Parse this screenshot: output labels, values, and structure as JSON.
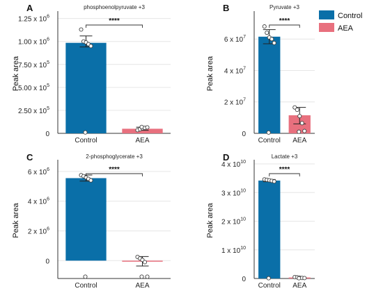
{
  "colors": {
    "control": "#0a6fa8",
    "aea": "#e8707e"
  },
  "legend": [
    {
      "label": "Control",
      "color": "#0a6fa8"
    },
    {
      "label": "AEA",
      "color": "#e8707e"
    }
  ],
  "chart_data": [
    {
      "panel": "A",
      "type": "bar",
      "title": "phosphoenolpyruvate +3",
      "ylabel": "Peak area",
      "categories": [
        "Control",
        "AEA"
      ],
      "values": [
        985000,
        50000
      ],
      "error": [
        [
          940000,
          1060000
        ],
        [
          33000,
          67000
        ]
      ],
      "points": [
        [
          1130000,
          1000000,
          990000,
          970000,
          950000,
          10000
        ],
        [
          35000,
          45000,
          55000,
          60000,
          65000,
          70000
        ]
      ],
      "ylim": [
        0,
        1300000
      ],
      "yticks": [
        {
          "value": 0,
          "base": "0",
          "exp": ""
        },
        {
          "value": 250000,
          "base": "2.50 x 10",
          "exp": "5"
        },
        {
          "value": 500000,
          "base": "5.00 x 10",
          "exp": "5"
        },
        {
          "value": 750000,
          "base": "7.50 x 10",
          "exp": "5"
        },
        {
          "value": 1000000,
          "base": "1.00 x 10",
          "exp": "6"
        },
        {
          "value": 1250000,
          "base": "1.25 x 10",
          "exp": "6"
        }
      ],
      "significance": "****"
    },
    {
      "panel": "B",
      "type": "bar",
      "title": "Pyruvate +3",
      "ylabel": "Peak area",
      "categories": [
        "Control",
        "AEA"
      ],
      "values": [
        61500000,
        11500000
      ],
      "error": [
        [
          57000000,
          66000000
        ],
        [
          6000000,
          16500000
        ]
      ],
      "points": [
        [
          68000000,
          64000000,
          61000000,
          60000000,
          57500000,
          500000
        ],
        [
          16500000,
          15000000,
          11000000,
          6500000,
          1500000,
          1000000
        ]
      ],
      "ylim": [
        0,
        76000000
      ],
      "yticks": [
        {
          "value": 0,
          "base": "0",
          "exp": ""
        },
        {
          "value": 20000000,
          "base": "2 x 10",
          "exp": "7"
        },
        {
          "value": 40000000,
          "base": "4 x 10",
          "exp": "7"
        },
        {
          "value": 60000000,
          "base": "6 x 10",
          "exp": "7"
        }
      ],
      "significance": "****"
    },
    {
      "panel": "C",
      "type": "bar",
      "title": "2-phosphoglycerate +3",
      "ylabel": "Peak area",
      "categories": [
        "Control",
        "AEA"
      ],
      "values": [
        5550000,
        -40000
      ],
      "error": [
        [
          5350000,
          5760000
        ],
        [
          -360000,
          280000
        ]
      ],
      "points": [
        [
          5750000,
          5680000,
          5600000,
          5500000,
          5400000,
          -1080000
        ],
        [
          250000,
          150000,
          50000,
          -100000,
          -1080000,
          -1080000
        ]
      ],
      "ylim": [
        -1200000,
        6600000
      ],
      "yticks": [
        {
          "value": 0,
          "base": "0",
          "exp": ""
        },
        {
          "value": 2000000,
          "base": "2 x 10",
          "exp": "6"
        },
        {
          "value": 4000000,
          "base": "4 x 10",
          "exp": "6"
        },
        {
          "value": 6000000,
          "base": "6 x 10",
          "exp": "6"
        }
      ],
      "significance": "****"
    },
    {
      "panel": "D",
      "type": "bar",
      "title": "Lactate +3",
      "ylabel": "Peak area",
      "categories": [
        "Control",
        "AEA"
      ],
      "values": [
        34200000000,
        350000000
      ],
      "error": [
        [
          33800000000,
          34600000000
        ],
        [
          200000000,
          500000000
        ]
      ],
      "points": [
        [
          34600000000,
          34450000000,
          34300000000,
          34100000000,
          33900000000,
          100000000
        ],
        [
          500000000,
          400000000,
          300000000,
          200000000,
          150000000,
          100000000
        ]
      ],
      "ylim": [
        0,
        40500000000
      ],
      "yticks": [
        {
          "value": 0,
          "base": "0",
          "exp": ""
        },
        {
          "value": 10000000000,
          "base": "1 x 10",
          "exp": "10"
        },
        {
          "value": 20000000000,
          "base": "2 x 10",
          "exp": "10"
        },
        {
          "value": 30000000000,
          "base": "3 x 10",
          "exp": "10"
        },
        {
          "value": 40000000000,
          "base": "4 x 10",
          "exp": "10"
        }
      ],
      "significance": "****"
    }
  ]
}
